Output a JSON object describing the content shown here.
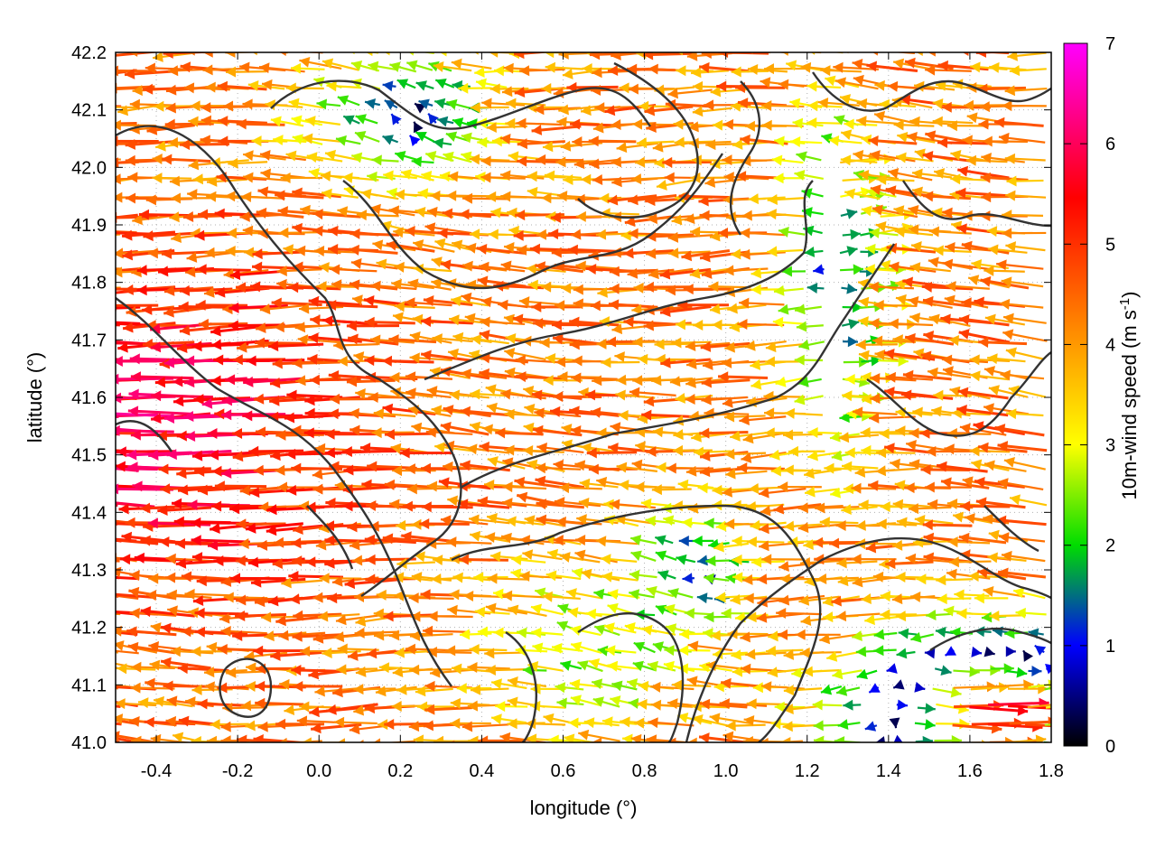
{
  "chart_data": {
    "type": "vector-field",
    "xlabel": "longitude (°)",
    "ylabel": "latitude (°)",
    "xlim": [
      -0.5,
      1.8
    ],
    "ylim": [
      41.0,
      42.2
    ],
    "x_ticks": [
      "-0.4",
      "-0.2",
      "0.0",
      "0.2",
      "0.4",
      "0.6",
      "0.8",
      "1.0",
      "1.2",
      "1.4",
      "1.6",
      "1.8"
    ],
    "x_tick_values": [
      -0.4,
      -0.2,
      0.0,
      0.2,
      0.4,
      0.6,
      0.8,
      1.0,
      1.2,
      1.4,
      1.6,
      1.8
    ],
    "y_ticks": [
      "41.0",
      "41.1",
      "41.2",
      "41.3",
      "41.4",
      "41.5",
      "41.6",
      "41.7",
      "41.8",
      "41.9",
      "42.0",
      "42.1",
      "42.2"
    ],
    "y_tick_values": [
      41.0,
      41.1,
      41.2,
      41.3,
      41.4,
      41.5,
      41.6,
      41.7,
      41.8,
      41.9,
      42.0,
      42.1,
      42.2
    ],
    "grid": "dotted",
    "colorbar": {
      "label": "10m-wind speed (m s",
      "label_superscript": "-1",
      "label_suffix": ")",
      "range": [
        0,
        7
      ],
      "ticks": [
        "0",
        "1",
        "2",
        "3",
        "4",
        "5",
        "6",
        "7"
      ],
      "tick_values": [
        0,
        1,
        2,
        3,
        4,
        5,
        6,
        7
      ],
      "colormap": [
        "#000000",
        "#0000ff",
        "#00dd00",
        "#ffff00",
        "#ff9900",
        "#ff0000",
        "#ff00ff"
      ]
    },
    "overlay": "terrain elevation contours (dark grey lines)",
    "field_description": "Dominant flow from east toward west (arrows pointing left) over most of the domain at 2-6 m/s; weak and variable winds (<1.5 m/s) near lon 1.2-1.4, lat 41.6-42.1 and in the north near lon 0.1-0.5; eastward-pointing stronger winds (4-6 m/s) in the south-east corner near lon 1.4-1.8, lat 41.0-41.2.",
    "sample_vectors": [
      {
        "lon": -0.4,
        "lat": 41.5,
        "speed": 6.0,
        "dir": "W"
      },
      {
        "lon": -0.2,
        "lat": 41.7,
        "speed": 5.0,
        "dir": "W"
      },
      {
        "lon": 0.0,
        "lat": 41.9,
        "speed": 4.0,
        "dir": "W"
      },
      {
        "lon": 0.2,
        "lat": 42.1,
        "speed": 1.0,
        "dir": "W"
      },
      {
        "lon": 0.6,
        "lat": 41.6,
        "speed": 4.0,
        "dir": "W"
      },
      {
        "lon": 1.0,
        "lat": 41.7,
        "speed": 4.5,
        "dir": "W"
      },
      {
        "lon": 1.3,
        "lat": 41.8,
        "speed": 1.0,
        "dir": "E"
      },
      {
        "lon": 1.6,
        "lat": 41.05,
        "speed": 5.5,
        "dir": "E"
      },
      {
        "lon": 1.7,
        "lat": 41.3,
        "speed": 4.5,
        "dir": "W"
      }
    ]
  }
}
